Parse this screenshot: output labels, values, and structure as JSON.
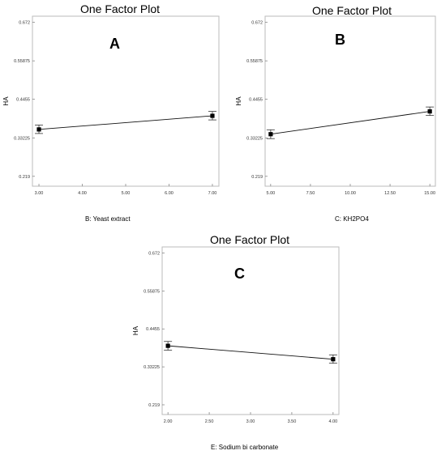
{
  "chart_data": [
    {
      "type": "line",
      "panel_label": "A",
      "title": "One Factor Plot",
      "xlabel": "B: Yeast extract",
      "ylabel": "HA",
      "xlim": [
        2.85,
        7.15
      ],
      "ylim": [
        0.19,
        0.69
      ],
      "x_ticks": [
        "3.00",
        "4.00",
        "5.00",
        "6.00",
        "7.00"
      ],
      "y_ticks": [
        "0.672",
        "0.55875",
        "0.4455",
        "0.33225",
        "0.219"
      ],
      "x": [
        3.0,
        7.0
      ],
      "y": [
        0.357,
        0.397
      ],
      "error_low": [
        0.345,
        0.385
      ],
      "error_high": [
        0.37,
        0.41
      ],
      "grid": false
    },
    {
      "type": "line",
      "panel_label": "B",
      "title": "One Factor Plot",
      "xlabel": "C: KH2PO4",
      "ylabel": "HA",
      "xlim": [
        4.65,
        15.35
      ],
      "ylim": [
        0.19,
        0.69
      ],
      "x_ticks": [
        "5.00",
        "7.50",
        "10.00",
        "12.50",
        "15.00"
      ],
      "y_ticks": [
        "0.672",
        "0.55875",
        "0.4455",
        "0.33225",
        "0.219"
      ],
      "x": [
        5.0,
        15.0
      ],
      "y": [
        0.343,
        0.41
      ],
      "error_low": [
        0.33,
        0.398
      ],
      "error_high": [
        0.356,
        0.423
      ],
      "grid": false
    },
    {
      "type": "line",
      "panel_label": "C",
      "title": "One Factor Plot",
      "xlabel": "E: Sodium bi carbonate",
      "ylabel": "HA",
      "xlim": [
        1.93,
        4.07
      ],
      "ylim": [
        0.19,
        0.69
      ],
      "x_ticks": [
        "2.00",
        "2.50",
        "3.00",
        "3.50",
        "4.00"
      ],
      "y_ticks": [
        "0.672",
        "0.55875",
        "0.4455",
        "0.33225",
        "0.219"
      ],
      "x": [
        2.0,
        4.0
      ],
      "y": [
        0.395,
        0.355
      ],
      "error_low": [
        0.382,
        0.343
      ],
      "error_high": [
        0.408,
        0.368
      ],
      "grid": false
    }
  ]
}
